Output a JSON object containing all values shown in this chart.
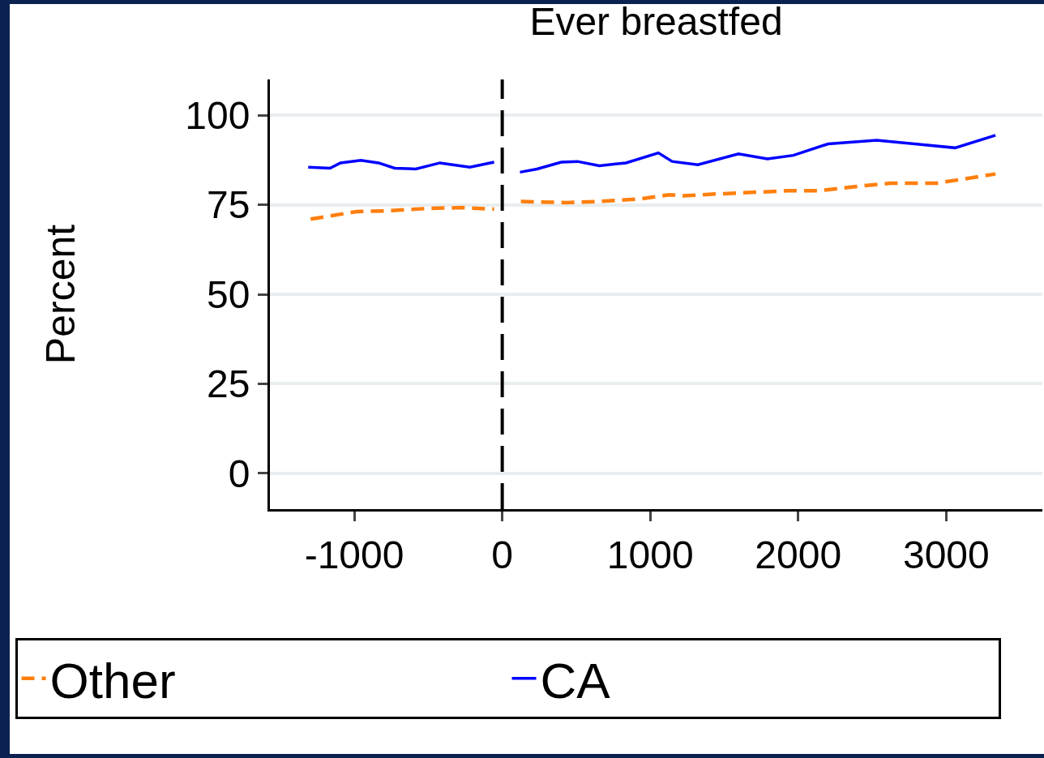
{
  "chart_data": {
    "type": "line",
    "title": "Ever breastfed",
    "ylabel": "Percent",
    "xlim": [
      -1570,
      3650
    ],
    "xticks": [
      -1000,
      0,
      1000,
      2000,
      3000
    ],
    "ylim": [
      -10,
      110
    ],
    "yticks": [
      0,
      25,
      50,
      75,
      100
    ],
    "grid": "y",
    "legend": "bottom",
    "marker": "none",
    "ref_lines": [
      {
        "axis": "x",
        "value": 0,
        "color": "#000000",
        "line_style": "dashed"
      }
    ],
    "series": [
      {
        "name": "Other",
        "color": "#ff7f0e",
        "line_style": "dashed",
        "x": [
          -1295,
          -984,
          -781,
          -492,
          -273,
          -55,
          null,
          126,
          437,
          639,
          929,
          1131,
          1219,
          1437,
          1929,
          2131,
          2443,
          2623,
          2934,
          3333
        ],
        "values": [
          71.0,
          73.1,
          73.3,
          74.0,
          74.2,
          73.8,
          null,
          75.9,
          75.6,
          75.9,
          76.6,
          77.8,
          77.5,
          78.0,
          78.9,
          78.9,
          80.3,
          81.0,
          81.0,
          83.6
        ]
      },
      {
        "name": "CA",
        "color": "#0000ff",
        "line_style": "solid",
        "x": [
          -1311,
          -1164,
          -1093,
          -956,
          -836,
          -727,
          -585,
          -421,
          -219,
          -55,
          null,
          120,
          235,
          399,
          508,
          656,
          836,
          1055,
          1148,
          1322,
          1596,
          1792,
          1967,
          2202,
          2530,
          2787,
          3060,
          3333
        ],
        "values": [
          85.5,
          85.2,
          86.7,
          87.4,
          86.7,
          85.2,
          85.0,
          86.7,
          85.5,
          86.9,
          null,
          84.1,
          85.0,
          86.9,
          87.1,
          85.9,
          86.7,
          89.5,
          87.1,
          86.2,
          89.2,
          87.8,
          88.8,
          92.0,
          93.0,
          92.0,
          90.9,
          94.4
        ]
      }
    ]
  }
}
